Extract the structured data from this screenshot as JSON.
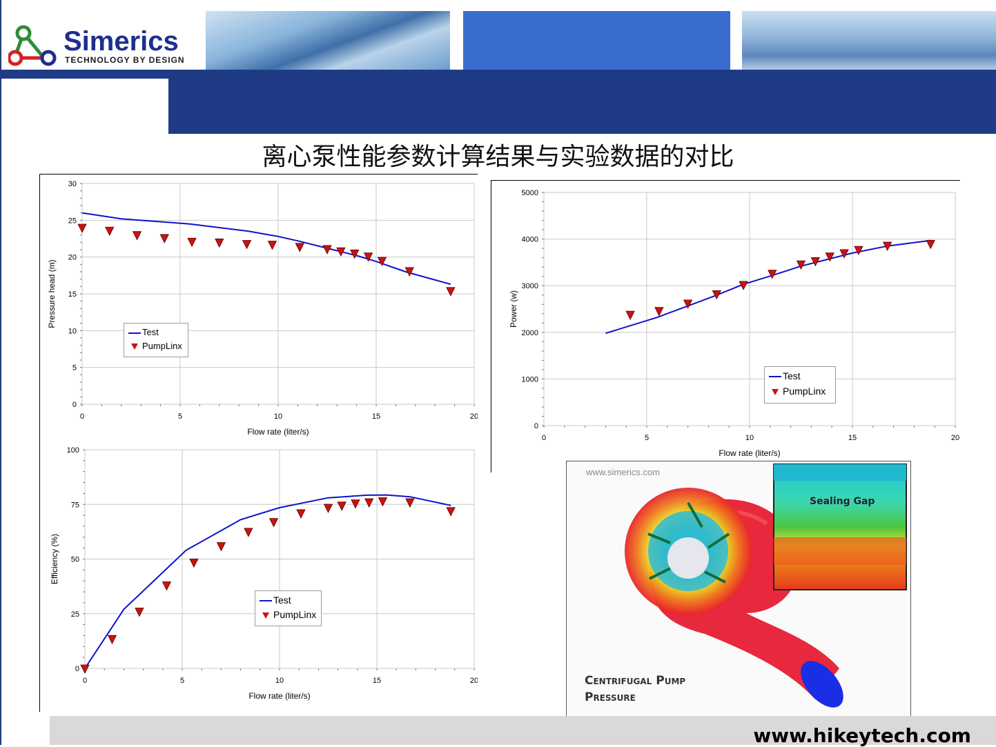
{
  "brand": {
    "name": "Simerics",
    "tagline": "TECHNOLOGY BY DESIGN",
    "colors": {
      "navy": "#1f3b86",
      "logo_red": "#d42222",
      "logo_green": "#2e8b3a",
      "logo_blue": "#1f2f8f"
    }
  },
  "slide": {
    "title": "离心泵性能参数计算结果与实验数据的对比"
  },
  "legend": {
    "test": "Test",
    "pumplinx": "PumpLinx"
  },
  "image": {
    "watermark": "www.simerics.com",
    "inset_label": "Sealing Gap",
    "caption_line1": "Centrifugal Pump",
    "caption_line2": "Pressure"
  },
  "footer": {
    "url": "www.hikeytech.com"
  },
  "colors": {
    "test_line": "#1010cc",
    "pumplinx_marker": "#cc1111",
    "grid": "#c8c8c8"
  },
  "chart_data": [
    {
      "id": "head",
      "type": "line",
      "title": "",
      "xlabel": "Flow rate (liter/s)",
      "ylabel": "Pressure head (m)",
      "xlim": [
        0,
        20
      ],
      "ylim": [
        0,
        30
      ],
      "xticks": [
        0,
        5,
        10,
        15,
        20
      ],
      "yticks": [
        0,
        5,
        10,
        15,
        20,
        25,
        30
      ],
      "legend_position": "left-middle",
      "grid": true,
      "series": [
        {
          "name": "Test",
          "style": "line",
          "x": [
            0,
            2,
            4,
            5.5,
            7,
            8.5,
            10,
            11,
            12.5,
            14,
            15,
            16.5,
            18.8
          ],
          "y": [
            26,
            25.2,
            24.8,
            24.5,
            24,
            23.5,
            22.8,
            22.2,
            21.2,
            20.2,
            19.4,
            18,
            16.3
          ]
        },
        {
          "name": "PumpLinx",
          "style": "marker",
          "x": [
            0,
            1.4,
            2.8,
            4.2,
            5.6,
            7,
            8.4,
            9.7,
            11.1,
            12.5,
            13.2,
            13.9,
            14.6,
            15.3,
            16.7,
            18.8
          ],
          "y": [
            24,
            23.6,
            23,
            22.6,
            22.1,
            22,
            21.8,
            21.7,
            21.4,
            21.1,
            20.8,
            20.5,
            20.1,
            19.5,
            18.1,
            15.4
          ]
        }
      ]
    },
    {
      "id": "power",
      "type": "line",
      "title": "",
      "xlabel": "Flow rate (liter/s)",
      "ylabel": "Power (w)",
      "xlim": [
        0,
        20
      ],
      "ylim": [
        0,
        5000
      ],
      "xticks": [
        0,
        5,
        10,
        15,
        20
      ],
      "yticks": [
        0,
        1000,
        2000,
        3000,
        4000,
        5000
      ],
      "legend_position": "center-bottom",
      "grid": true,
      "series": [
        {
          "name": "Test",
          "style": "line",
          "x": [
            3,
            5.5,
            8.3,
            9.7,
            11.1,
            12.5,
            15,
            16.7,
            18.8
          ],
          "y": [
            1980,
            2320,
            2780,
            3030,
            3220,
            3420,
            3700,
            3850,
            3970
          ]
        },
        {
          "name": "PumpLinx",
          "style": "marker",
          "x": [
            4.2,
            5.6,
            7,
            8.4,
            9.7,
            11.1,
            12.5,
            13.2,
            13.9,
            14.6,
            15.3,
            16.7,
            18.8
          ],
          "y": [
            2380,
            2460,
            2620,
            2820,
            3020,
            3260,
            3460,
            3530,
            3630,
            3700,
            3770,
            3860,
            3900
          ]
        }
      ]
    },
    {
      "id": "efficiency",
      "type": "line",
      "title": "",
      "xlabel": "Flow rate (liter/s)",
      "ylabel": "Efficiency (%)",
      "xlim": [
        0,
        20
      ],
      "ylim": [
        0,
        100
      ],
      "xticks": [
        0,
        5,
        10,
        15,
        20
      ],
      "yticks": [
        0,
        25,
        50,
        75,
        100
      ],
      "legend_position": "center-bottom",
      "grid": true,
      "series": [
        {
          "name": "Test",
          "style": "line",
          "x": [
            0,
            2,
            5.2,
            8,
            10,
            12.5,
            14.5,
            15.5,
            16.7,
            18.8
          ],
          "y": [
            0,
            27,
            54,
            68,
            73.5,
            78,
            79.2,
            79.3,
            78.5,
            74.5
          ]
        },
        {
          "name": "PumpLinx",
          "style": "marker",
          "x": [
            0,
            1.4,
            2.8,
            4.2,
            5.6,
            7,
            8.4,
            9.7,
            11.1,
            12.5,
            13.2,
            13.9,
            14.6,
            15.3,
            16.7,
            18.8
          ],
          "y": [
            0,
            13.5,
            26,
            38,
            48.5,
            56,
            62.5,
            67,
            71,
            73.5,
            74.5,
            75.5,
            76,
            76.5,
            76,
            72
          ]
        }
      ]
    }
  ]
}
